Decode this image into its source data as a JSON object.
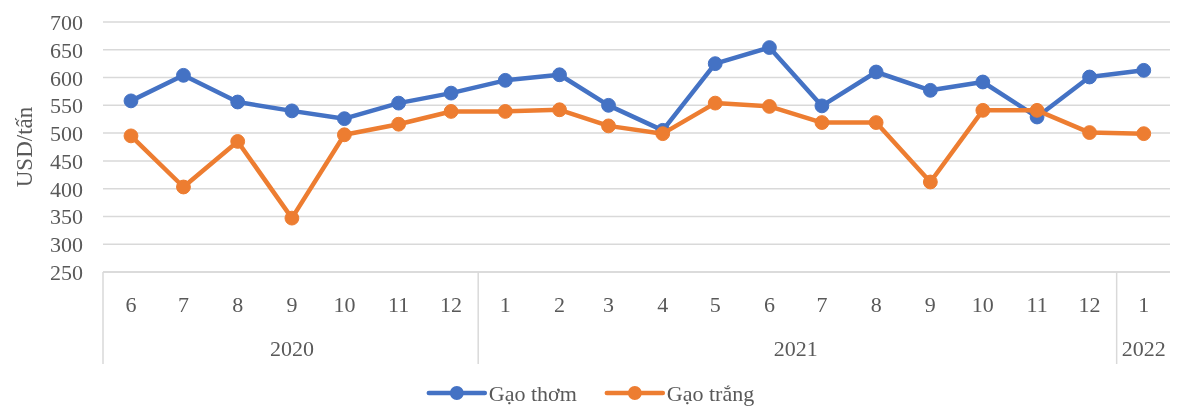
{
  "chart_data": {
    "type": "line",
    "ylabel": "USD/tấn",
    "x": [
      "2020-06",
      "2020-07",
      "2020-08",
      "2020-09",
      "2020-10",
      "2020-11",
      "2020-12",
      "2021-01",
      "2021-02",
      "2021-03",
      "2021-04",
      "2021-05",
      "2021-06",
      "2021-07",
      "2021-08",
      "2021-09",
      "2021-10",
      "2021-11",
      "2021-12",
      "2022-01"
    ],
    "xlim": [
      "2020-05-16",
      "2022-01-16"
    ],
    "xticks": [
      {
        "value": "2020-06",
        "label": "6"
      },
      {
        "value": "2020-07",
        "label": "7"
      },
      {
        "value": "2020-08",
        "label": "8"
      },
      {
        "value": "2020-09",
        "label": "9"
      },
      {
        "value": "2020-10",
        "label": "10"
      },
      {
        "value": "2020-11",
        "label": "11"
      },
      {
        "value": "2020-12",
        "label": "12"
      },
      {
        "value": "2021-01",
        "label": "1"
      },
      {
        "value": "2021-02",
        "label": "2"
      },
      {
        "value": "2021-03",
        "label": "3"
      },
      {
        "value": "2021-04",
        "label": "4"
      },
      {
        "value": "2021-05",
        "label": "5"
      },
      {
        "value": "2021-06",
        "label": "6"
      },
      {
        "value": "2021-07",
        "label": "7"
      },
      {
        "value": "2021-08",
        "label": "8"
      },
      {
        "value": "2021-09",
        "label": "9"
      },
      {
        "value": "2021-10",
        "label": "10"
      },
      {
        "value": "2021-11",
        "label": "11"
      },
      {
        "value": "2021-12",
        "label": "12"
      },
      {
        "value": "2022-01",
        "label": "1"
      }
    ],
    "x2lim": [
      "2020-05-16",
      "2022-01-16"
    ],
    "x2ticks": [
      {
        "value": "2020-09",
        "label": "2020"
      },
      {
        "value": "2021-06-16",
        "label": "2021"
      },
      {
        "value": "2022-01",
        "label": "2022"
      }
    ],
    "ylim": [
      250,
      700
    ],
    "yticks": [
      250,
      300,
      350,
      400,
      450,
      500,
      550,
      600,
      650,
      700
    ],
    "grid": "y",
    "legend": "bottom",
    "marker": "circle",
    "series": [
      {
        "name": "Gạo thơm",
        "color": "#4472c4",
        "values": [
          558,
          604,
          556,
          540,
          526,
          554,
          572,
          595,
          605,
          550,
          505,
          625,
          654,
          549,
          610,
          577,
          592,
          529,
          601,
          613
        ]
      },
      {
        "name": "Gạo trắng",
        "color": "#ed7d31",
        "values": [
          495,
          403,
          485,
          347,
          497,
          516,
          539,
          539,
          542,
          513,
          499,
          554,
          548,
          519,
          519,
          412,
          541,
          541,
          501,
          499
        ]
      }
    ]
  }
}
